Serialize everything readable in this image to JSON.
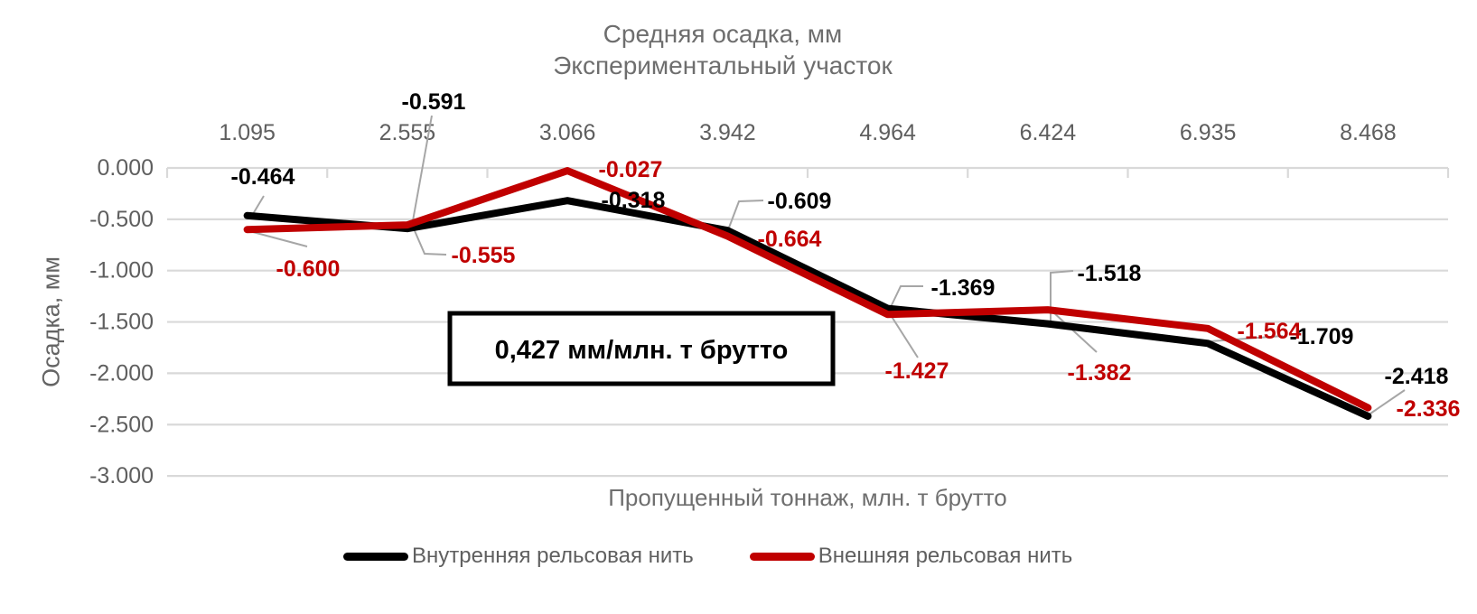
{
  "title": {
    "line1": "Средняя осадка, мм",
    "line2": "Экспериментальный участок"
  },
  "chart_data": {
    "type": "line",
    "categories": [
      "1.095",
      "2.555",
      "3.066",
      "3.942",
      "4.964",
      "6.424",
      "6.935",
      "8.468"
    ],
    "series": [
      {
        "name": "Внутренняя рельсовая нить",
        "color": "#000000",
        "values": [
          -0.464,
          -0.591,
          -0.318,
          -0.609,
          -1.369,
          -1.518,
          -1.709,
          -2.418
        ]
      },
      {
        "name": "Внешняя рельсовая нить",
        "color": "#C00000",
        "values": [
          -0.6,
          -0.555,
          -0.027,
          -0.664,
          -1.427,
          -1.382,
          -1.564,
          -2.336
        ]
      }
    ],
    "title": "Средняя осадка, мм Экспериментальный участок",
    "xlabel": "Пропущенный тоннаж, млн. т брутто",
    "ylabel": "Осадка, мм",
    "ylim": [
      -3.0,
      0.0
    ],
    "ytick_labels": [
      "0.000",
      "-0.500",
      "-1.000",
      "-1.500",
      "-2.000",
      "-2.500",
      "-3.000"
    ],
    "grid": true,
    "legend_position": "bottom",
    "annotation": "0,427 мм/млн. т брутто"
  },
  "colors": {
    "series_inner": "#000000",
    "series_outer": "#C00000",
    "gridline": "#D9D9D9",
    "leader_line": "#A6A6A6",
    "axis_text": "#5F5F5F",
    "title_text": "#6E6E6E",
    "annotation_border": "#000000",
    "annotation_text": "#000000"
  }
}
